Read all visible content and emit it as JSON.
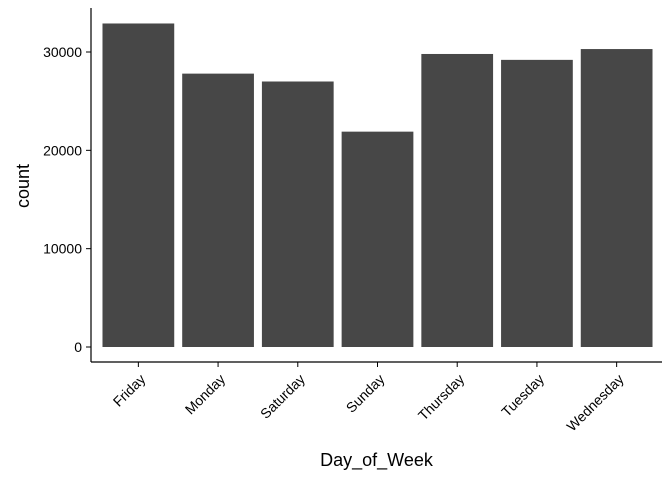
{
  "chart_data": {
    "type": "bar",
    "title": "",
    "xlabel": "Day_of_Week",
    "ylabel": "count",
    "categories": [
      "Friday",
      "Monday",
      "Saturday",
      "Sunday",
      "Thursday",
      "Tuesday",
      "Wednesday"
    ],
    "values": [
      32900,
      27800,
      27000,
      21900,
      29800,
      29200,
      30300
    ],
    "ylim": [
      0,
      34600
    ],
    "yticks": [
      0,
      10000,
      20000,
      30000
    ],
    "ytick_labels": [
      "0",
      "10000",
      "20000",
      "30000"
    ],
    "bar_color": "#474747",
    "axis_color": "#000000",
    "background": "#ffffff",
    "grid": false,
    "legend": "none",
    "x_tick_rotation": "45"
  }
}
